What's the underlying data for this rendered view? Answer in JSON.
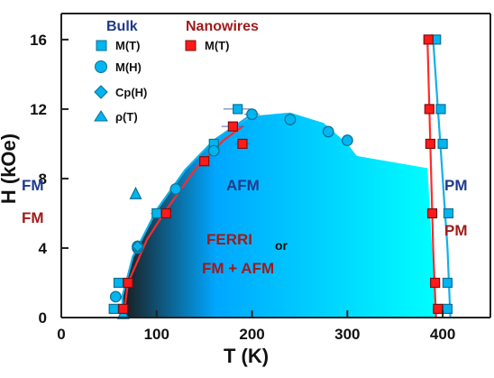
{
  "chart_data": {
    "type": "scatter",
    "xlabel": "T (K)",
    "ylabel": "H (kOe)",
    "xlim": [
      0,
      450
    ],
    "ylim": [
      0,
      17.5
    ],
    "x_ticks": [
      0,
      100,
      200,
      300,
      400
    ],
    "y_ticks": [
      0,
      4,
      8,
      12,
      16
    ],
    "grid": false,
    "legend": {
      "bulk_title": "Bulk",
      "nanowires_title": "Nanowires",
      "bulk_items": [
        {
          "label": "M(T)",
          "marker": "square"
        },
        {
          "label": "M(H)",
          "marker": "circle"
        },
        {
          "label": "Cp(H)",
          "marker": "diamond"
        },
        {
          "label": "ρ(T)",
          "marker": "triangle"
        }
      ],
      "nanowire_items": [
        {
          "label": "M(T)",
          "marker": "square"
        }
      ]
    },
    "series": [
      {
        "group": "Bulk",
        "marker": "square",
        "points": [
          [
            55,
            0.5
          ],
          [
            60,
            2
          ],
          [
            100,
            6
          ],
          [
            160,
            10
          ],
          [
            185,
            12
          ],
          [
            393,
            16
          ],
          [
            398,
            12
          ],
          [
            400,
            10
          ],
          [
            406,
            6
          ],
          [
            405,
            2
          ],
          [
            405,
            0.5
          ]
        ]
      },
      {
        "group": "Bulk",
        "marker": "circle",
        "points": [
          [
            57,
            1.2
          ],
          [
            80,
            4
          ],
          [
            80,
            4.1
          ],
          [
            120,
            7.4
          ],
          [
            160,
            9.6
          ],
          [
            200,
            11.7
          ],
          [
            240,
            11.4
          ],
          [
            280,
            10.7
          ],
          [
            300,
            10.2
          ]
        ]
      },
      {
        "group": "Bulk",
        "marker": "diamond",
        "points": [
          [
            80,
            4.1
          ]
        ]
      },
      {
        "group": "Bulk",
        "marker": "triangle",
        "points": [
          [
            65,
            0.2
          ],
          [
            78,
            7.1
          ]
        ]
      },
      {
        "group": "Nanowires",
        "marker": "square",
        "points": [
          [
            65,
            0.5
          ],
          [
            70,
            2
          ],
          [
            110,
            6
          ],
          [
            150,
            9
          ],
          [
            180,
            11
          ],
          [
            190,
            10
          ],
          [
            385,
            16
          ],
          [
            386,
            12
          ],
          [
            387,
            10
          ],
          [
            389,
            6
          ],
          [
            392,
            2
          ],
          [
            395,
            0.5
          ]
        ]
      }
    ],
    "boundary_bulk_left": [
      [
        65,
        0
      ],
      [
        64,
        1.2
      ],
      [
        75,
        3.5
      ],
      [
        100,
        6.2
      ],
      [
        130,
        8.5
      ],
      [
        160,
        10.2
      ],
      [
        200,
        11.7
      ]
    ],
    "boundary_nanowires_left": [
      [
        65,
        0
      ],
      [
        70,
        2
      ],
      [
        90,
        4.5
      ],
      [
        110,
        6.2
      ],
      [
        140,
        8.5
      ],
      [
        170,
        10.2
      ],
      [
        190,
        11
      ]
    ],
    "boundary_bulk_right": [
      [
        390,
        16
      ],
      [
        395,
        12
      ],
      [
        400,
        8
      ],
      [
        405,
        4
      ],
      [
        408,
        0
      ]
    ],
    "boundary_nanowires_right": [
      [
        384,
        16
      ],
      [
        386,
        12
      ],
      [
        388,
        8
      ],
      [
        390,
        4
      ],
      [
        393,
        0
      ]
    ],
    "afm_region": [
      [
        65,
        0
      ],
      [
        63,
        1.2
      ],
      [
        75,
        3.5
      ],
      [
        100,
        6.2
      ],
      [
        130,
        8.5
      ],
      [
        160,
        10.2
      ],
      [
        200,
        11.6
      ],
      [
        240,
        11.8
      ],
      [
        275,
        11.2
      ],
      [
        300,
        10
      ],
      [
        310,
        9.3
      ],
      [
        384,
        8.6
      ],
      [
        393,
        0
      ]
    ],
    "colors": {
      "bulk": "#1e3a8a",
      "nanowires": "#a11a1a",
      "bulk_marker": "#00b5f0",
      "nanowire_marker": "#ff1a1a",
      "curve_bulk": "#12b0e8",
      "curve_nanowires": "#ff2b2b",
      "gradient_start": "#1a1a1a",
      "gradient_mid": "#00a7ff",
      "gradient_end": "#00ffff"
    },
    "annotations": {
      "fm_bulk": "FM",
      "fm_nano": "FM",
      "afm": "AFM",
      "pm_bulk": "PM",
      "pm_nano": "PM",
      "ferri": "FERRI",
      "or": "or",
      "fm_afm": "FM + AFM"
    }
  }
}
